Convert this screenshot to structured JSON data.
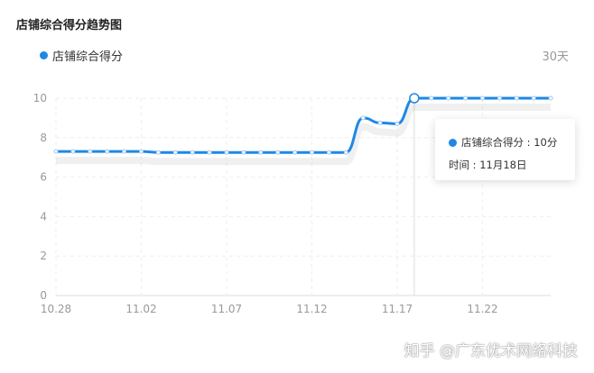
{
  "title": "店铺综合得分趋势图",
  "range_label": "30天",
  "accent": "#1e88e5",
  "tooltip": {
    "series": "店铺综合得分",
    "value": "10分",
    "time_label": "时间",
    "time": "11月18日"
  },
  "watermark": "知乎 @广东优术网络科技",
  "chart_data": {
    "type": "line",
    "title": "店铺综合得分趋势图",
    "series": [
      {
        "name": "店铺综合得分",
        "color": "#1e88e5",
        "values": [
          7.3,
          7.3,
          7.3,
          7.3,
          7.3,
          7.3,
          7.25,
          7.25,
          7.25,
          7.25,
          7.25,
          7.25,
          7.25,
          7.25,
          7.25,
          7.25,
          7.25,
          7.25,
          9.0,
          8.75,
          8.7,
          10,
          10,
          10,
          10,
          10,
          10,
          10,
          10,
          10
        ]
      }
    ],
    "x": [
      "10.28",
      "10.29",
      "10.30",
      "10.31",
      "11.01",
      "11.02",
      "11.03",
      "11.04",
      "11.05",
      "11.06",
      "11.07",
      "11.08",
      "11.09",
      "11.10",
      "11.11",
      "11.12",
      "11.13",
      "11.14",
      "11.15",
      "11.16",
      "11.17",
      "11.18",
      "11.19",
      "11.20",
      "11.21",
      "11.22",
      "11.23",
      "11.24",
      "11.25",
      "11.26"
    ],
    "x_ticks": [
      "10.28",
      "11.02",
      "11.07",
      "11.12",
      "11.17",
      "11.22"
    ],
    "y_ticks": [
      0,
      2,
      4,
      6,
      8,
      10
    ],
    "ylim": [
      0,
      10
    ],
    "grid": true,
    "legend": "top-left",
    "highlighted": "11.18"
  }
}
